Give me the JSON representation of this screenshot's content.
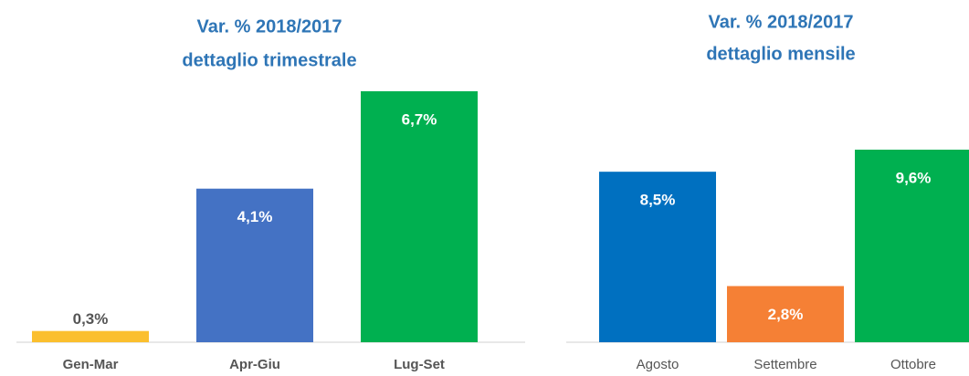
{
  "chart_data": [
    {
      "type": "bar",
      "title": [
        "Var. % 2018/2017",
        "dettaglio trimestrale"
      ],
      "categories": [
        "Gen-Mar",
        "Apr-Giu",
        "Lug-Set"
      ],
      "values": [
        0.3,
        4.1,
        6.7
      ],
      "value_labels": [
        "0,3%",
        "4,1%",
        "6,7%"
      ],
      "colors": [
        "#fbbf2e",
        "#4472c4",
        "#00b050"
      ],
      "bold_categories": true
    },
    {
      "type": "bar",
      "title": [
        "Var. % 2018/2017",
        "dettaglio mensile"
      ],
      "categories": [
        "Agosto",
        "Settembre",
        "Ottobre"
      ],
      "values": [
        8.5,
        2.8,
        9.6
      ],
      "value_labels": [
        "8,5%",
        "2,8%",
        "9,6%"
      ],
      "colors": [
        "#0070c0",
        "#f58035",
        "#00b050"
      ],
      "bold_categories": false
    }
  ]
}
